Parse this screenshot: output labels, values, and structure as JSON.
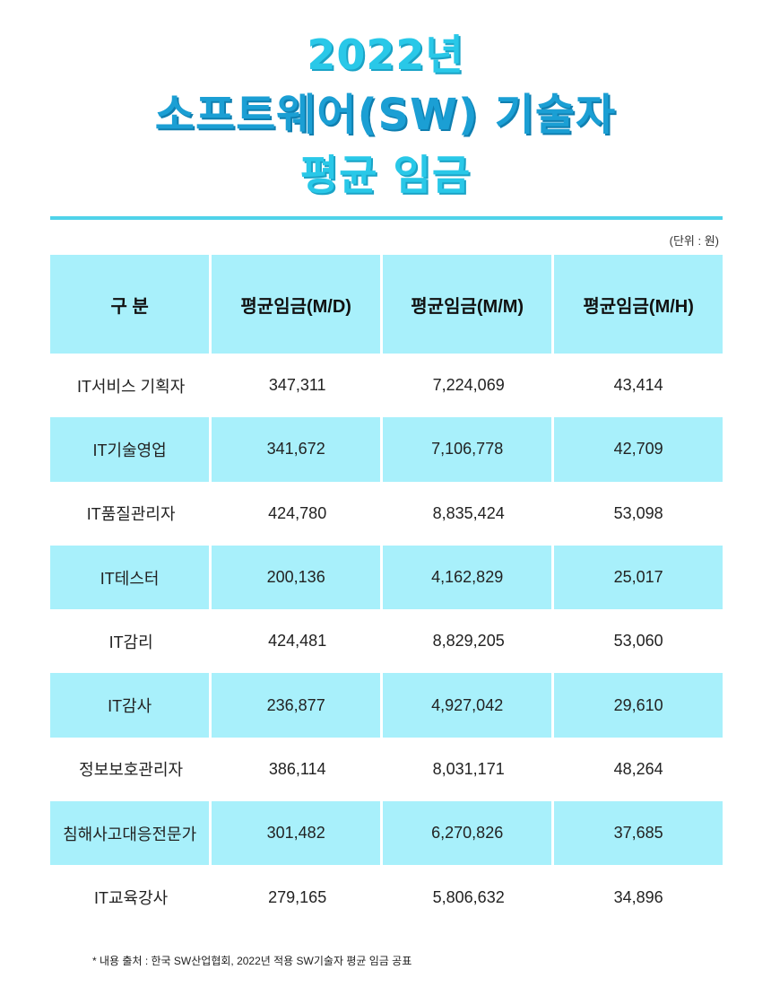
{
  "title": {
    "line1": "2022년",
    "line2": "소프트웨어(SW) 기술자",
    "line3": "평균 임금"
  },
  "unit_note": "(단위 : 원)",
  "table": {
    "headers": [
      "구 분",
      "평균임금(M/D)",
      "평균임금(M/M)",
      "평균임금(M/H)"
    ],
    "rows": [
      [
        "IT서비스 기획자",
        "347,311",
        "7,224,069",
        "43,414"
      ],
      [
        "IT기술영업",
        "341,672",
        "7,106,778",
        "42,709"
      ],
      [
        "IT품질관리자",
        "424,780",
        "8,835,424",
        "53,098"
      ],
      [
        "IT테스터",
        "200,136",
        "4,162,829",
        "25,017"
      ],
      [
        "IT감리",
        "424,481",
        "8,829,205",
        "53,060"
      ],
      [
        "IT감사",
        "236,877",
        "4,927,042",
        "29,610"
      ],
      [
        "정보보호관리자",
        "386,114",
        "8,031,171",
        "48,264"
      ],
      [
        "침해사고대응전문가",
        "301,482",
        "6,270,826",
        "37,685"
      ],
      [
        "IT교육강사",
        "279,165",
        "5,806,632",
        "34,896"
      ]
    ]
  },
  "footnote": "* 내용 출처 : 한국 SW산업협회, 2022년 적용 SW기술자 평균 임금 공표",
  "colors": {
    "accent_light": "#29c8e8",
    "accent_dark": "#1b9fd4",
    "row_fill": "#a8f0fb"
  }
}
